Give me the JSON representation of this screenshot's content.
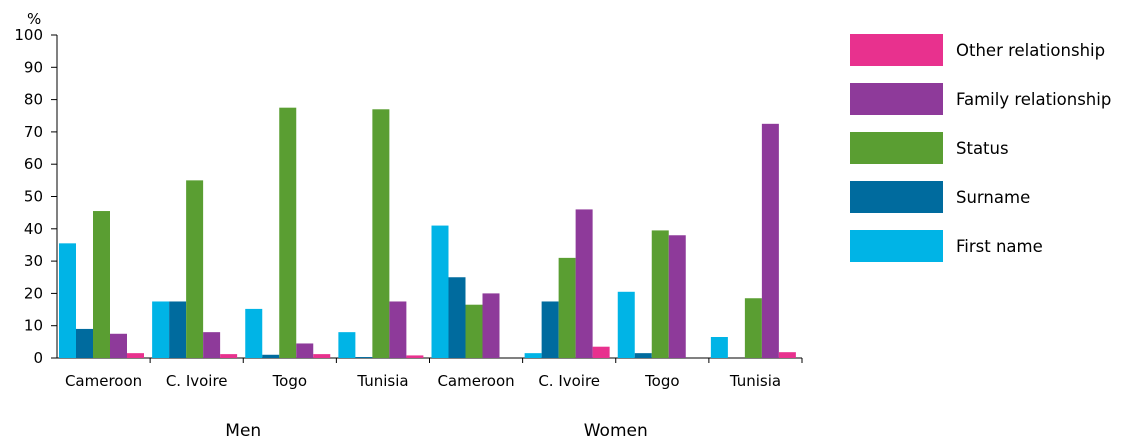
{
  "chart_data": {
    "type": "bar",
    "ylabel": "%",
    "ylim": [
      0,
      100
    ],
    "yticks": [
      0,
      10,
      20,
      30,
      40,
      50,
      60,
      70,
      80,
      90,
      100
    ],
    "categories": [
      "Cameroon",
      "C. Ivoire",
      "Togo",
      "Tunisia",
      "Cameroon",
      "C. Ivoire",
      "Togo",
      "Tunisia"
    ],
    "groups": [
      {
        "label": "Men",
        "span": [
          0,
          3
        ]
      },
      {
        "label": "Women",
        "span": [
          4,
          7
        ]
      }
    ],
    "series": [
      {
        "name": "First name",
        "color": "#00b4e6",
        "values": [
          35.5,
          17.5,
          15.2,
          8.0,
          41.0,
          1.5,
          20.5,
          6.5
        ]
      },
      {
        "name": "Surname",
        "color": "#006b9e",
        "values": [
          9.0,
          17.5,
          1.0,
          0.3,
          25.0,
          17.5,
          1.5,
          0.0
        ]
      },
      {
        "name": "Status",
        "color": "#5a9e32",
        "values": [
          45.5,
          55.0,
          77.5,
          77.0,
          16.5,
          31.0,
          39.5,
          18.5
        ]
      },
      {
        "name": "Family relationship",
        "color": "#8e3a9a",
        "values": [
          7.5,
          8.0,
          4.5,
          17.5,
          20.0,
          46.0,
          38.0,
          72.5
        ]
      },
      {
        "name": "Other relationship",
        "color": "#e8318e",
        "values": [
          1.5,
          1.2,
          1.2,
          0.8,
          0.0,
          3.5,
          0.0,
          1.8
        ]
      }
    ],
    "legend": {
      "position": "right",
      "order": [
        "Other relationship",
        "Family relationship",
        "Status",
        "Surname",
        "First name"
      ]
    },
    "grid": false
  }
}
